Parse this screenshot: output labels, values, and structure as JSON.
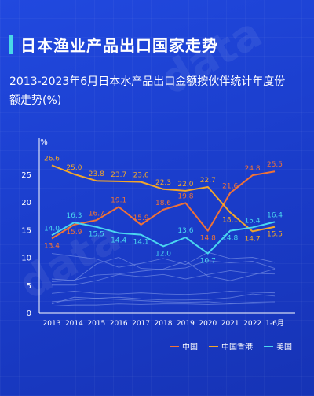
{
  "header": {
    "title": "日本渔业产品出口国家走势",
    "subtitle": "2013-2023年6月日本水产品出口金额按伙伴统计年度份额走势(%)"
  },
  "watermark": "data",
  "chart_data": {
    "type": "line",
    "title": "2013-2023年6月日本水产品出口金额按伙伴统计年度份额走势(%)",
    "ylabel": "%",
    "ylim": [
      0,
      30
    ],
    "yticks": [
      0,
      5,
      10,
      15,
      20,
      25
    ],
    "categories": [
      "2013",
      "2014",
      "2015",
      "2016",
      "2017",
      "2018",
      "2019",
      "2020",
      "2021",
      "2022",
      "1-6月"
    ],
    "grid": false,
    "legend_position": "bottom-right",
    "series": [
      {
        "name": "中国",
        "color": "#f07236",
        "values": [
          13.4,
          15.9,
          16.7,
          19.1,
          15.9,
          18.6,
          19.8,
          14.8,
          21.6,
          24.8,
          25.5
        ]
      },
      {
        "name": "中国香港",
        "color": "#f2a62b",
        "values": [
          26.6,
          25.0,
          23.8,
          23.7,
          23.6,
          22.3,
          22.0,
          22.7,
          18.1,
          14.7,
          15.5
        ]
      },
      {
        "name": "美国",
        "color": "#4ad6f0",
        "values": [
          14.0,
          16.3,
          15.5,
          14.4,
          14.1,
          12.0,
          13.6,
          10.7,
          14.8,
          15.4,
          16.4
        ]
      }
    ],
    "background_series": [
      {
        "color": "#8fa6ec",
        "values": [
          10.7,
          10.2,
          9.7,
          8.2,
          8.9,
          9.8,
          8.7,
          10.9,
          9.8,
          10.0,
          9.1
        ]
      },
      {
        "color": "#8fa6ec",
        "values": [
          6.1,
          5.8,
          8.8,
          10.0,
          8.0,
          7.8,
          8.1,
          9.4,
          9.0,
          9.3,
          8.0
        ]
      },
      {
        "color": "#8fa6ec",
        "values": [
          5.6,
          5.9,
          6.8,
          7.0,
          7.5,
          7.9,
          9.3,
          6.6,
          5.8,
          6.8,
          7.9
        ]
      },
      {
        "color": "#8fa6ec",
        "values": [
          5.0,
          5.0,
          5.8,
          6.9,
          6.5,
          6.9,
          6.1,
          6.9,
          7.6,
          7.1,
          7.0
        ]
      },
      {
        "color": "#8fa6ec",
        "values": [
          3.5,
          3.9,
          3.5,
          3.4,
          3.6,
          3.4,
          3.3,
          3.5,
          3.9,
          3.7,
          3.6
        ]
      },
      {
        "color": "#8fa6ec",
        "values": [
          2.0,
          2.3,
          2.6,
          2.8,
          2.5,
          2.3,
          2.3,
          2.4,
          2.7,
          3.4,
          3.0
        ]
      },
      {
        "color": "#8fa6ec",
        "values": [
          1.6,
          2.8,
          2.6,
          2.4,
          2.2,
          2.0,
          1.9,
          2.0,
          1.7,
          1.9,
          2.0
        ]
      },
      {
        "color": "#8fa6ec",
        "values": [
          1.2,
          1.4,
          1.4,
          1.6,
          1.5,
          1.6,
          1.6,
          1.5,
          1.6,
          1.7,
          1.8
        ]
      }
    ]
  }
}
